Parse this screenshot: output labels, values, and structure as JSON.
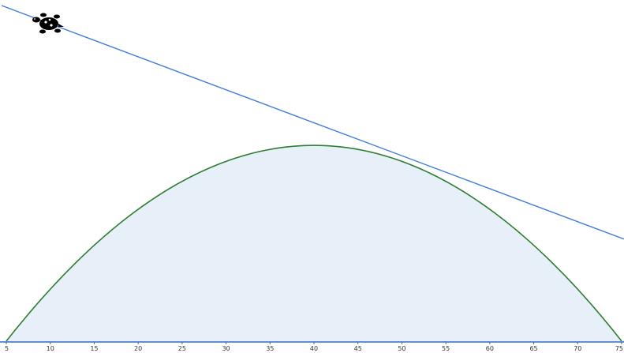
{
  "chart_data": {
    "type": "area",
    "title": "",
    "xlabel": "",
    "ylabel": "",
    "xlim": [
      5,
      75
    ],
    "grid": false,
    "x_ticks": [
      "5",
      "10",
      "15",
      "20",
      "25",
      "30",
      "35",
      "40",
      "45",
      "50",
      "55",
      "60",
      "65",
      "70",
      "75"
    ],
    "series": [
      {
        "kind": "parabola-area",
        "x": [
          5,
          10,
          15,
          20,
          25,
          30,
          35,
          40,
          45,
          50,
          55,
          60,
          65,
          70,
          75
        ],
        "y": [
          0,
          0.469,
          0.816,
          1.061,
          1.224,
          1.327,
          1.388,
          1.408,
          1.388,
          1.327,
          1.224,
          1.061,
          0.816,
          0.469,
          0
        ],
        "peak": {
          "x": 40,
          "y": 1.408
        }
      },
      {
        "kind": "tangent-line",
        "x": [
          5,
          48.5,
          75
        ],
        "y": [
          2.414,
          1.316,
          0.734
        ]
      }
    ],
    "colors": {
      "curve": "#2e7d32",
      "fill": "#e7eff8",
      "line": "#3b7dd8",
      "axis": "#2b6cc4"
    }
  },
  "decoration": {
    "turtle_icon": "turtle-icon"
  }
}
